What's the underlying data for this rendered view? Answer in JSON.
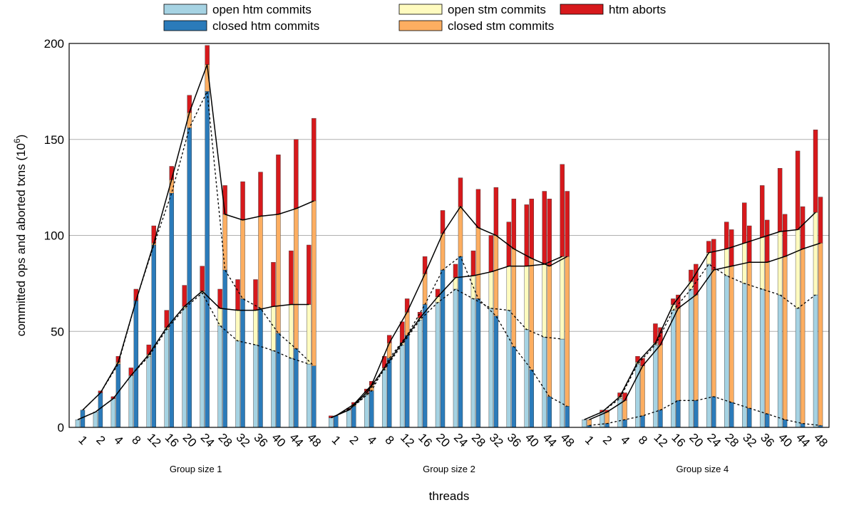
{
  "chart_data": {
    "type": "bar",
    "style": "stacked bars in pairs (open / closed variants) with trend lines",
    "xlabel": "threads",
    "ylabel": "committed ops and aborted txns (10",
    "ylabel_sup": "6",
    "ylabel_close": ")",
    "ylim": [
      0,
      200
    ],
    "yticks": [
      0,
      50,
      100,
      150,
      200
    ],
    "grid": "horizontal",
    "legend": {
      "position": "top",
      "entries": [
        {
          "label": "open htm commits",
          "color": "#a6d3e3"
        },
        {
          "label": "closed htm commits",
          "color": "#2b7bba"
        },
        {
          "label": "open stm commits",
          "color": "#fffbbf"
        },
        {
          "label": "closed stm commits",
          "color": "#fdae61"
        },
        {
          "label": "htm aborts",
          "color": "#d7191c"
        }
      ]
    },
    "colors": {
      "open_htm": "#a6d3e3",
      "closed_htm": "#2b7bba",
      "open_stm": "#fffbbf",
      "closed_stm": "#fdae61",
      "htm_aborts": "#d7191c"
    },
    "groups": [
      {
        "label": "Group size 1",
        "threads": [
          "1",
          "2",
          "4",
          "8",
          "12",
          "16",
          "20",
          "24",
          "28",
          "32",
          "36",
          "40",
          "44",
          "48"
        ],
        "open": {
          "htm": [
            4,
            8,
            15,
            27,
            37,
            51,
            62,
            70,
            53,
            45,
            43,
            40,
            36,
            33
          ],
          "stm": [
            0,
            0,
            0,
            0,
            1,
            1,
            1,
            1,
            9,
            16,
            18,
            23,
            28,
            31
          ],
          "aborts": [
            0,
            0,
            1,
            4,
            5,
            9,
            11,
            13,
            10,
            16,
            16,
            23,
            28,
            31
          ]
        },
        "closed": {
          "htm": [
            9,
            18,
            33,
            66,
            95,
            122,
            156,
            175,
            82,
            67,
            62,
            49,
            41,
            32
          ],
          "stm": [
            0,
            0,
            1,
            0,
            1,
            7,
            8,
            14,
            29,
            41,
            48,
            62,
            73,
            86
          ],
          "aborts": [
            0,
            1,
            3,
            6,
            9,
            7,
            9,
            10,
            15,
            20,
            23,
            31,
            36,
            43
          ]
        }
      },
      {
        "label": "Group size 2",
        "threads": [
          "1",
          "2",
          "4",
          "8",
          "12",
          "16",
          "20",
          "24",
          "28",
          "32",
          "36",
          "40",
          "44",
          "48"
        ],
        "open": {
          "htm": [
            5,
            9,
            17,
            30,
            43,
            56,
            65,
            72,
            67,
            62,
            61,
            51,
            47,
            46
          ],
          "stm": [
            0,
            0,
            1,
            1,
            1,
            1,
            3,
            6,
            12,
            19,
            23,
            33,
            38,
            43
          ],
          "aborts": [
            1,
            1,
            2,
            6,
            11,
            3,
            4,
            7,
            13,
            19,
            23,
            32,
            38,
            48
          ]
        },
        "closed": {
          "htm": [
            6,
            11,
            19,
            36,
            48,
            64,
            82,
            89,
            67,
            58,
            42,
            30,
            16,
            11
          ],
          "stm": [
            0,
            1,
            3,
            8,
            12,
            16,
            19,
            26,
            37,
            42,
            51,
            58,
            68,
            78
          ],
          "aborts": [
            0,
            1,
            2,
            4,
            7,
            9,
            12,
            15,
            20,
            25,
            26,
            31,
            35,
            34
          ]
        }
      },
      {
        "label": "Group size 4",
        "threads": [
          "1",
          "2",
          "4",
          "8",
          "12",
          "16",
          "20",
          "24",
          "28",
          "32",
          "36",
          "40",
          "44",
          "48"
        ],
        "open": {
          "htm": [
            4,
            8,
            15,
            33,
            43,
            61,
            72,
            85,
            79,
            75,
            72,
            69,
            62,
            69
          ],
          "stm": [
            0,
            0,
            1,
            1,
            1,
            3,
            4,
            6,
            14,
            21,
            27,
            33,
            41,
            43
          ],
          "aborts": [
            0,
            1,
            2,
            3,
            10,
            3,
            6,
            6,
            14,
            21,
            27,
            33,
            41,
            43
          ]
        },
        "closed": {
          "htm": [
            1,
            2,
            4,
            6,
            9,
            14,
            14,
            16,
            13,
            10,
            7,
            4,
            2,
            1
          ],
          "stm": [
            3,
            6,
            10,
            26,
            34,
            48,
            55,
            66,
            71,
            76,
            79,
            85,
            91,
            95
          ],
          "aborts": [
            0,
            1,
            4,
            4,
            9,
            7,
            16,
            16,
            19,
            19,
            22,
            22,
            22,
            24
          ]
        }
      }
    ]
  }
}
